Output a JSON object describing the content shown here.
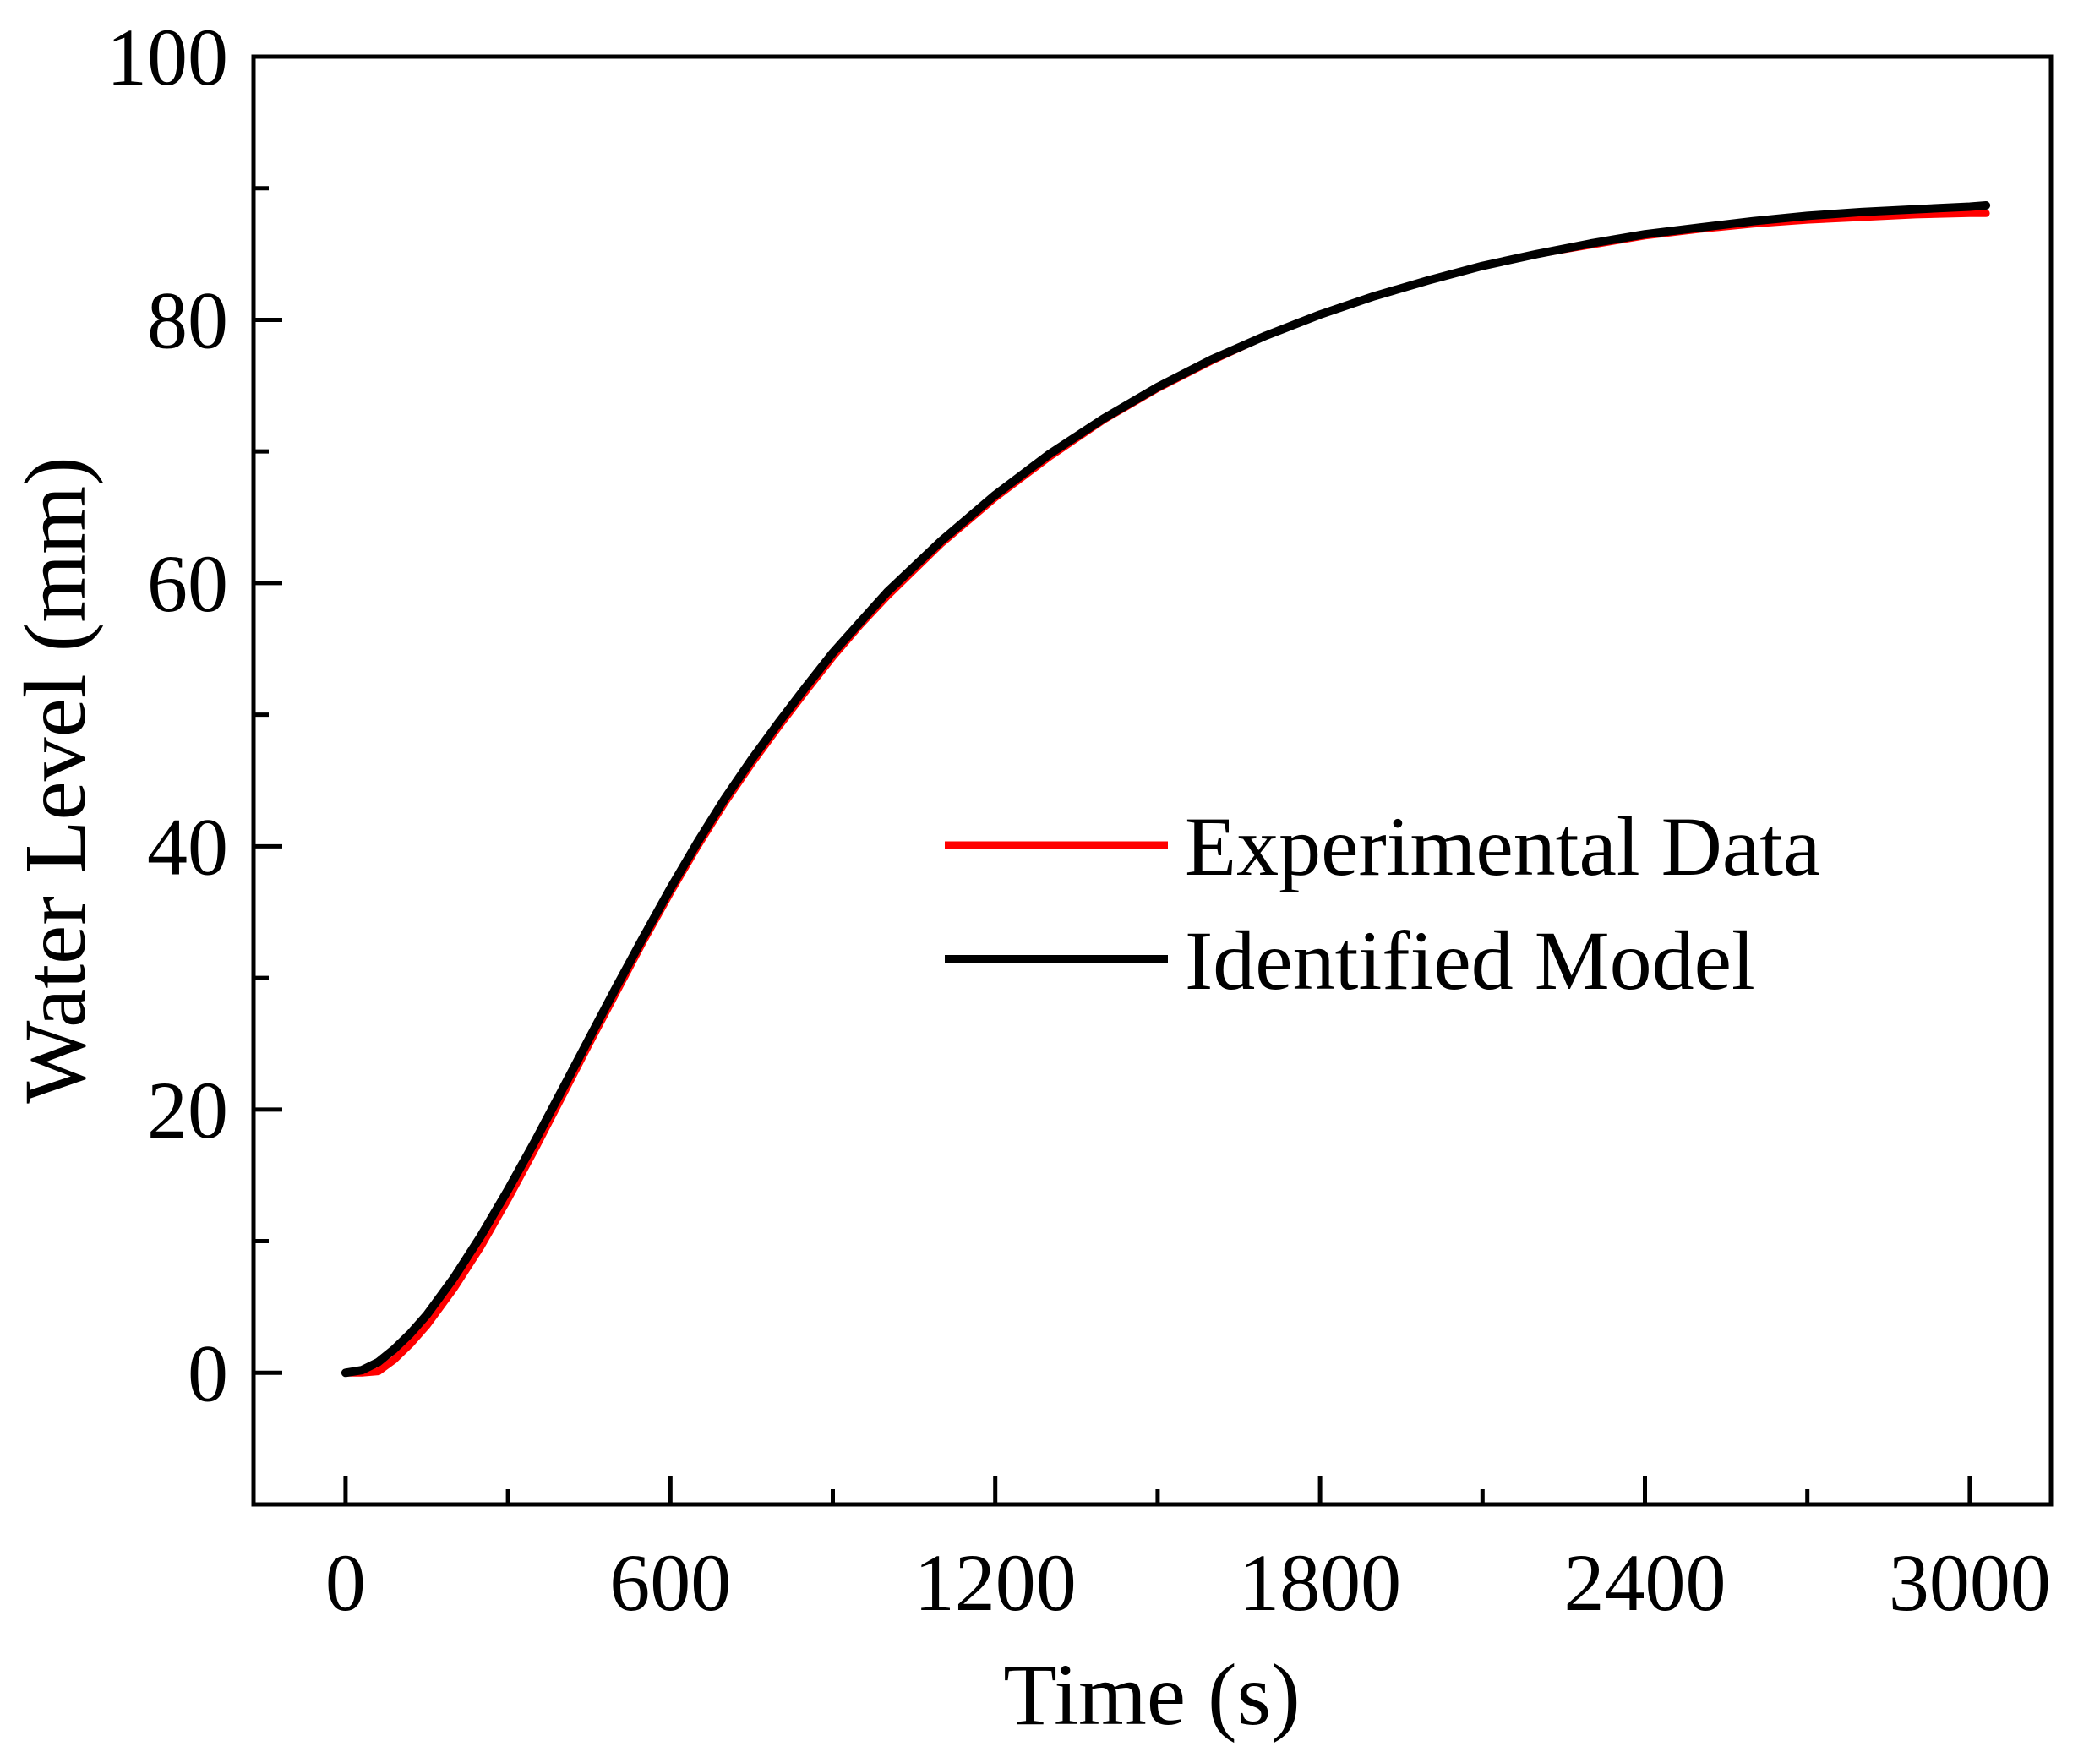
{
  "chart_data": {
    "type": "line",
    "title": "",
    "xlabel": "Time (s)",
    "ylabel": "Water Level (mm)",
    "xlim": [
      -170,
      3150
    ],
    "ylim": [
      -10,
      100
    ],
    "xticks": [
      0,
      600,
      1200,
      1800,
      2400,
      3000
    ],
    "xtick_labels": [
      "0",
      "600",
      "1200",
      "1800",
      "2400",
      "3000"
    ],
    "x_minor_step": 300,
    "yticks": [
      0,
      20,
      40,
      60,
      80,
      100
    ],
    "ytick_labels": [
      "0",
      "20",
      "40",
      "60",
      "80",
      "100"
    ],
    "y_minor_step": 10,
    "grid": false,
    "legend_position": "center-right",
    "series": [
      {
        "name": "Experimental Data",
        "color": "#ff0000",
        "x": [
          0,
          30,
          60,
          90,
          120,
          150,
          200,
          250,
          300,
          350,
          400,
          450,
          500,
          550,
          600,
          650,
          700,
          750,
          800,
          850,
          900,
          950,
          1000,
          1100,
          1200,
          1300,
          1400,
          1500,
          1600,
          1700,
          1800,
          1900,
          2000,
          2100,
          2200,
          2300,
          2400,
          2500,
          2600,
          2700,
          2800,
          2900,
          3000,
          3030
        ],
        "y": [
          0.0,
          0.0,
          0.1,
          1.0,
          2.2,
          3.6,
          6.4,
          9.6,
          13.2,
          17.0,
          21.0,
          25.0,
          28.9,
          32.8,
          36.5,
          40.0,
          43.3,
          46.3,
          49.1,
          51.8,
          54.4,
          56.8,
          59.0,
          63.0,
          66.5,
          69.6,
          72.4,
          74.8,
          76.9,
          78.8,
          80.4,
          81.8,
          83.0,
          84.1,
          85.0,
          85.7,
          86.4,
          86.9,
          87.3,
          87.6,
          87.8,
          88.0,
          88.1,
          88.1
        ]
      },
      {
        "name": "Identified Model",
        "color": "#000000",
        "x": [
          0,
          30,
          60,
          90,
          120,
          150,
          200,
          250,
          300,
          350,
          400,
          450,
          500,
          550,
          600,
          650,
          700,
          750,
          800,
          850,
          900,
          950,
          1000,
          1100,
          1200,
          1300,
          1400,
          1500,
          1600,
          1700,
          1800,
          1900,
          2000,
          2100,
          2200,
          2300,
          2400,
          2500,
          2600,
          2700,
          2800,
          2900,
          3000,
          3030
        ],
        "y": [
          0.0,
          0.2,
          0.8,
          1.8,
          3.0,
          4.4,
          7.2,
          10.4,
          13.9,
          17.6,
          21.5,
          25.4,
          29.3,
          33.1,
          36.8,
          40.3,
          43.6,
          46.6,
          49.4,
          52.1,
          54.7,
          57.0,
          59.3,
          63.2,
          66.7,
          69.8,
          72.5,
          74.9,
          77.0,
          78.8,
          80.4,
          81.8,
          83.0,
          84.1,
          85.0,
          85.8,
          86.5,
          87.0,
          87.5,
          87.9,
          88.2,
          88.4,
          88.6,
          88.7
        ]
      }
    ]
  }
}
